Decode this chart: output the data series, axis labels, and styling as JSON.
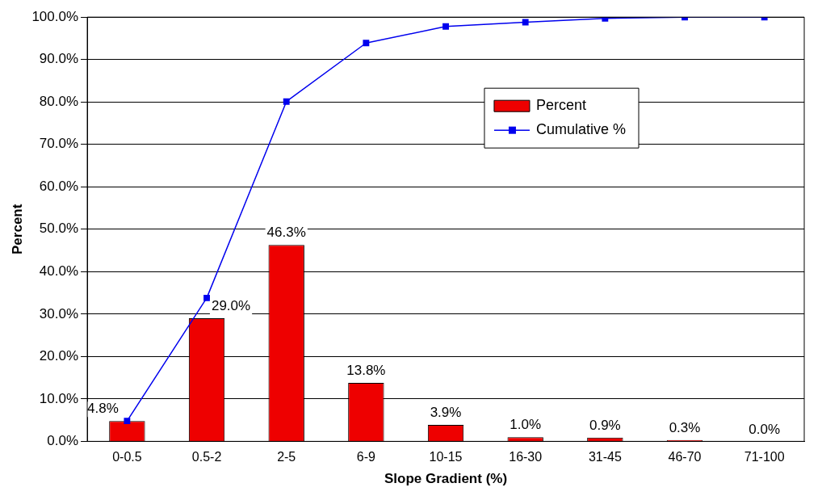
{
  "chart_data": {
    "type": "bar",
    "xlabel": "Slope Gradient (%)",
    "ylabel": "Percent",
    "categories": [
      "0-0.5",
      "0.5-2",
      "2-5",
      "6-9",
      "10-15",
      "16-30",
      "31-45",
      "46-70",
      "71-100"
    ],
    "series": [
      {
        "name": "Percent",
        "color": "#ee0000",
        "values": [
          4.8,
          29.0,
          46.3,
          13.8,
          3.9,
          1.0,
          0.9,
          0.3,
          0.0
        ],
        "value_labels": [
          "4.8%",
          "29.0%",
          "46.3%",
          "13.8%",
          "3.9%",
          "1.0%",
          "0.9%",
          "0.3%",
          "0.0%"
        ]
      },
      {
        "name": "Cumulative %",
        "type": "line",
        "color": "#0000ee",
        "marker": "square",
        "values": [
          4.8,
          33.8,
          80.1,
          93.9,
          97.8,
          98.8,
          99.7,
          100.0,
          100.0
        ]
      }
    ],
    "ylim": [
      0,
      100
    ],
    "yticks": [
      {
        "value": 0,
        "label": "0.0%"
      },
      {
        "value": 10,
        "label": "10.0%"
      },
      {
        "value": 20,
        "label": "20.0%"
      },
      {
        "value": 30,
        "label": "30.0%"
      },
      {
        "value": 40,
        "label": "40.0%"
      },
      {
        "value": 50,
        "label": "50.0%"
      },
      {
        "value": 60,
        "label": "60.0%"
      },
      {
        "value": 70,
        "label": "70.0%"
      },
      {
        "value": 80,
        "label": "80.0%"
      },
      {
        "value": 90,
        "label": "90.0%"
      },
      {
        "value": 100,
        "label": "100.0%"
      }
    ],
    "grid": "y",
    "legend": "top right"
  }
}
